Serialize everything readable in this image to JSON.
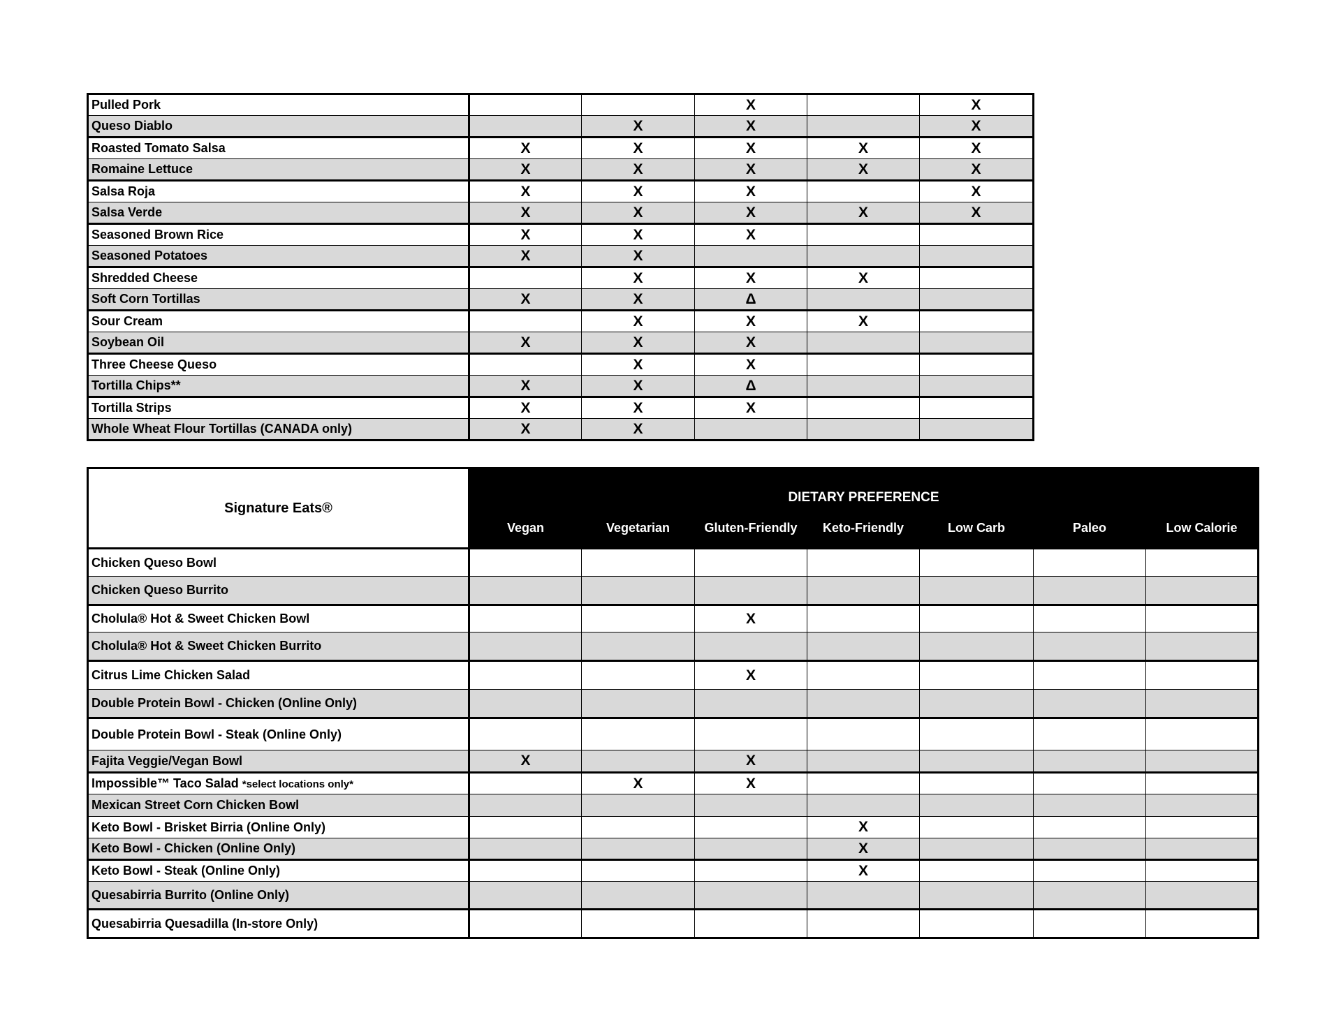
{
  "ingredients_table": {
    "rows": [
      {
        "name": "Pulled Pork",
        "marks": [
          "",
          "",
          "X",
          "",
          "X"
        ]
      },
      {
        "name": "Queso Diablo",
        "marks": [
          "",
          "X",
          "X",
          "",
          "X"
        ]
      },
      {
        "name": "Roasted Tomato Salsa",
        "marks": [
          "X",
          "X",
          "X",
          "X",
          "X"
        ]
      },
      {
        "name": "Romaine Lettuce",
        "marks": [
          "X",
          "X",
          "X",
          "X",
          "X"
        ]
      },
      {
        "name": "Salsa Roja",
        "marks": [
          "X",
          "X",
          "X",
          "",
          "X"
        ]
      },
      {
        "name": "Salsa Verde",
        "marks": [
          "X",
          "X",
          "X",
          "X",
          "X"
        ]
      },
      {
        "name": "Seasoned Brown Rice",
        "marks": [
          "X",
          "X",
          "X",
          "",
          ""
        ]
      },
      {
        "name": "Seasoned Potatoes",
        "marks": [
          "X",
          "X",
          "",
          "",
          ""
        ]
      },
      {
        "name": "Shredded Cheese",
        "marks": [
          "",
          "X",
          "X",
          "X",
          ""
        ]
      },
      {
        "name": "Soft Corn Tortillas",
        "marks": [
          "X",
          "X",
          "Δ",
          "",
          ""
        ]
      },
      {
        "name": "Sour Cream",
        "marks": [
          "",
          "X",
          "X",
          "X",
          ""
        ]
      },
      {
        "name": "Soybean Oil",
        "marks": [
          "X",
          "X",
          "X",
          "",
          ""
        ]
      },
      {
        "name": "Three Cheese Queso",
        "marks": [
          "",
          "X",
          "X",
          "",
          ""
        ]
      },
      {
        "name": "Tortilla Chips**",
        "marks": [
          "X",
          "X",
          "Δ",
          "",
          ""
        ]
      },
      {
        "name": "Tortilla Strips",
        "marks": [
          "X",
          "X",
          "X",
          "",
          ""
        ]
      },
      {
        "name": "Whole Wheat Flour Tortillas (CANADA only)",
        "marks": [
          "X",
          "X",
          "",
          "",
          ""
        ]
      }
    ]
  },
  "signature_table": {
    "title": "Signature Eats®",
    "group_header": "DIETARY PREFERENCE",
    "columns": [
      "Vegan",
      "Vegetarian",
      "Gluten-Friendly",
      "Keto-Friendly",
      "Low Carb",
      "Paleo",
      "Low Calorie"
    ],
    "rows": [
      {
        "name": "Chicken Queso Bowl",
        "marks": [
          "",
          "",
          "",
          "",
          "",
          "",
          ""
        ]
      },
      {
        "name": "Chicken Queso Burrito",
        "marks": [
          "",
          "",
          "",
          "",
          "",
          "",
          ""
        ]
      },
      {
        "name": "Cholula® Hot & Sweet Chicken Bowl",
        "marks": [
          "",
          "",
          "X",
          "",
          "",
          "",
          ""
        ]
      },
      {
        "name": "Cholula® Hot & Sweet Chicken Burrito",
        "marks": [
          "",
          "",
          "",
          "",
          "",
          "",
          ""
        ]
      },
      {
        "name": "Citrus Lime Chicken Salad",
        "marks": [
          "",
          "",
          "X",
          "",
          "",
          "",
          ""
        ]
      },
      {
        "name": "Double Protein Bowl - Chicken (Online Only)",
        "marks": [
          "",
          "",
          "",
          "",
          "",
          "",
          ""
        ]
      },
      {
        "name": "Double Protein Bowl - Steak  (Online Only)",
        "marks": [
          "",
          "",
          "",
          "",
          "",
          "",
          ""
        ]
      },
      {
        "name": "Fajita Veggie/Vegan Bowl",
        "marks": [
          "X",
          "",
          "X",
          "",
          "",
          "",
          ""
        ]
      },
      {
        "name": "Impossible™ Taco Salad",
        "note": "*select locations only*",
        "marks": [
          "",
          "X",
          "X",
          "",
          "",
          "",
          ""
        ]
      },
      {
        "name": "Mexican Street Corn Chicken Bowl",
        "marks": [
          "",
          "",
          "",
          "",
          "",
          "",
          ""
        ]
      },
      {
        "name": "Keto Bowl - Brisket Birria (Online Only)",
        "marks": [
          "",
          "",
          "",
          "X",
          "",
          "",
          ""
        ]
      },
      {
        "name": "Keto Bowl - Chicken (Online Only)",
        "marks": [
          "",
          "",
          "",
          "X",
          "",
          "",
          ""
        ]
      },
      {
        "name": "Keto Bowl - Steak (Online Only)",
        "marks": [
          "",
          "",
          "",
          "X",
          "",
          "",
          ""
        ]
      },
      {
        "name": "Quesabirria Burrito (Online Only)",
        "marks": [
          "",
          "",
          "",
          "",
          "",
          "",
          ""
        ]
      },
      {
        "name": "Quesabirria Quesadilla (In-store Only)",
        "marks": [
          "",
          "",
          "",
          "",
          "",
          "",
          ""
        ]
      }
    ]
  }
}
